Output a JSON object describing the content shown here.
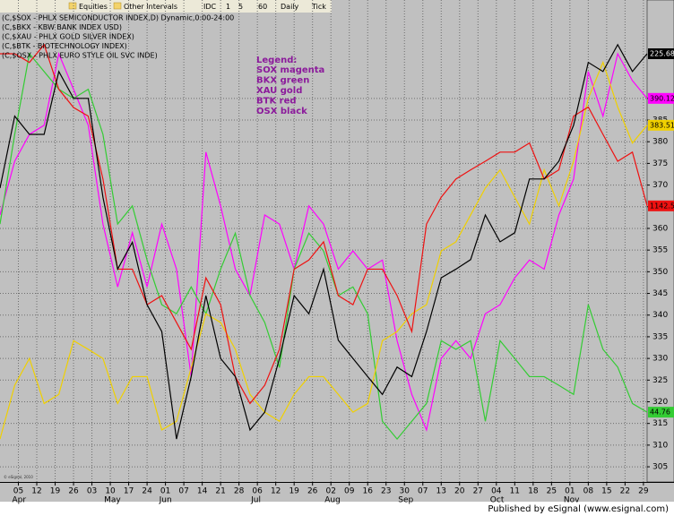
{
  "toolbar": [
    "Equities",
    "Other Intervals",
    "IDC",
    "1",
    "5",
    "60",
    "Daily",
    "Tick"
  ],
  "footer": "Published by eSignal (www.esignal.com)",
  "copyright": "© eSignal, 2010",
  "chart_data": {
    "type": "line",
    "legend_title": "Legend:",
    "legend_lines": [
      "SOX magenta",
      "BKX green",
      "XAU gold",
      "BTK red",
      "OSX black"
    ],
    "legend_color": "#8b1a9b",
    "grid": true,
    "x": [
      0,
      4,
      8,
      12,
      16,
      20,
      24,
      28,
      32,
      36,
      40,
      44,
      48,
      52,
      56,
      60,
      64,
      68,
      72,
      76,
      80,
      84,
      88,
      92,
      96,
      100,
      104,
      108,
      112,
      116,
      120,
      124,
      128,
      132,
      136,
      140,
      144,
      148,
      152,
      156,
      160,
      164,
      168,
      172,
      176
    ],
    "xlim": [
      0,
      176
    ],
    "xticks": [
      {
        "value": 5,
        "label": "05"
      },
      {
        "value": 10,
        "label": "12"
      },
      {
        "value": 15,
        "label": "19"
      },
      {
        "value": 20,
        "label": "26"
      },
      {
        "value": 25,
        "label": "03"
      },
      {
        "value": 30,
        "label": "10"
      },
      {
        "value": 35,
        "label": "17"
      },
      {
        "value": 40,
        "label": "24"
      },
      {
        "value": 45,
        "label": "01"
      },
      {
        "value": 50,
        "label": "07"
      },
      {
        "value": 55,
        "label": "14"
      },
      {
        "value": 60,
        "label": "21"
      },
      {
        "value": 65,
        "label": "28"
      },
      {
        "value": 70,
        "label": "06"
      },
      {
        "value": 75,
        "label": "12"
      },
      {
        "value": 80,
        "label": "19"
      },
      {
        "value": 85,
        "label": "26"
      },
      {
        "value": 90,
        "label": "02"
      },
      {
        "value": 95,
        "label": "09"
      },
      {
        "value": 100,
        "label": "16"
      },
      {
        "value": 105,
        "label": "23"
      },
      {
        "value": 110,
        "label": "30"
      },
      {
        "value": 115,
        "label": "07"
      },
      {
        "value": 120,
        "label": "13"
      },
      {
        "value": 125,
        "label": "20"
      },
      {
        "value": 130,
        "label": "27"
      },
      {
        "value": 135,
        "label": "04"
      },
      {
        "value": 140,
        "label": "11"
      },
      {
        "value": 145,
        "label": "18"
      },
      {
        "value": 150,
        "label": "25"
      },
      {
        "value": 155,
        "label": "01"
      },
      {
        "value": 160,
        "label": "08"
      },
      {
        "value": 165,
        "label": "15"
      },
      {
        "value": 170,
        "label": "22"
      },
      {
        "value": 175,
        "label": "29"
      }
    ],
    "month_labels": [
      {
        "value": 5,
        "label": "Apr"
      },
      {
        "value": 30,
        "label": "May"
      },
      {
        "value": 45,
        "label": "Jun"
      },
      {
        "value": 70,
        "label": "Jul"
      },
      {
        "value": 90,
        "label": "Aug"
      },
      {
        "value": 110,
        "label": "Sep"
      },
      {
        "value": 135,
        "label": "Oct"
      },
      {
        "value": 155,
        "label": "Nov"
      }
    ],
    "ylim": [
      301.5,
      412.7
    ],
    "yticks": [
      305,
      310,
      315,
      320,
      325,
      330,
      335,
      340,
      345,
      350,
      355,
      360,
      365,
      370,
      375,
      380,
      385,
      390
    ],
    "series": [
      {
        "name": "(C,$SOX - PHLX SEMICONDUCTOR INDEX,D) Dynamic,0:00-24:00",
        "color": "#ff00ff",
        "last_label": "390.12",
        "values": [
          363.1,
          375.5,
          381.7,
          383.8,
          400.3,
          392.1,
          383.8,
          361,
          346.5,
          359,
          346.5,
          361,
          350.6,
          325.8,
          377.6,
          365.2,
          350.6,
          344.5,
          363.1,
          361,
          350.6,
          365.2,
          361,
          350.6,
          354.8,
          350.6,
          352.7,
          334.1,
          321.7,
          313.5,
          330,
          334.1,
          330,
          340.3,
          342.4,
          348.6,
          352.7,
          350.6,
          363.1,
          371.4,
          396.2,
          385.9,
          400.3,
          394.1,
          390
        ]
      },
      {
        "name": "(C,$BKX - KBW BANK INDEX USD)",
        "color": "#33cc33",
        "last_label": "44.76",
        "values": [
          361,
          381.7,
          400.3,
          396.2,
          392.1,
          390,
          392.1,
          381.7,
          361,
          365.2,
          352.7,
          342.4,
          340.3,
          346.5,
          340.3,
          350.6,
          358.9,
          344.5,
          338.3,
          327.9,
          350.6,
          358.9,
          354.8,
          344.5,
          346.5,
          340.3,
          315.5,
          311.4,
          315.5,
          319.6,
          334.1,
          332.1,
          334.1,
          315.5,
          334.1,
          330,
          325.8,
          325.8,
          323.8,
          321.7,
          342.4,
          332.1,
          328,
          319.6,
          317.6
        ]
      },
      {
        "name": "(C,$XAU - PHLX GOLD SILVER INDEX)",
        "color": "#f0d000",
        "last_label": "383.51",
        "values": [
          311.4,
          323.8,
          330,
          319.6,
          321.7,
          334.1,
          332.1,
          330,
          319.6,
          325.8,
          325.8,
          313.5,
          315.5,
          327.9,
          340.3,
          338.3,
          332.1,
          321.7,
          317.6,
          315.5,
          321.7,
          325.8,
          325.8,
          321.7,
          317.6,
          319.6,
          334.1,
          336.2,
          340.3,
          342.4,
          354.8,
          356.9,
          363.1,
          369.3,
          373.5,
          367.2,
          361,
          373.5,
          365.2,
          375.5,
          390,
          398.3,
          388,
          379.7,
          383.8
        ]
      },
      {
        "name": "(C,$BTK - BIOTECHNOLOGY INDEX)",
        "color": "#ee1111",
        "last_label": "1142.5",
        "values": [
          400.3,
          400.3,
          398.3,
          402.4,
          392.1,
          387.9,
          385.9,
          371.4,
          350.6,
          350.6,
          342.4,
          344.5,
          338.3,
          332.1,
          348.6,
          342.4,
          325.8,
          319.6,
          323.8,
          332.1,
          350.6,
          352.7,
          356.9,
          344.5,
          342.4,
          350.6,
          350.6,
          344.5,
          336.2,
          361,
          367.2,
          371.4,
          373.5,
          375.5,
          377.6,
          377.6,
          379.7,
          371.4,
          373.5,
          385.9,
          388,
          381.7,
          375.5,
          377.6,
          365.2
        ]
      },
      {
        "name": "(C,$OSX - PHLX EURO STYLE OIL SVC INDE)",
        "color": "#000000",
        "last_label": "225.68",
        "values": [
          369.3,
          385.9,
          381.7,
          381.7,
          396.2,
          390,
          390,
          367.2,
          350.6,
          356.8,
          342.4,
          336.2,
          311.4,
          325.8,
          344.5,
          330,
          325.8,
          313.5,
          317.6,
          330,
          344.5,
          340.3,
          350.6,
          334.2,
          330,
          325.8,
          321.7,
          328,
          325.8,
          336.2,
          348.6,
          350.6,
          352.8,
          363.1,
          356.9,
          359,
          371.4,
          371.4,
          375.5,
          383.8,
          398.3,
          396.2,
          402.4,
          396.2,
          400.3
        ]
      }
    ]
  }
}
